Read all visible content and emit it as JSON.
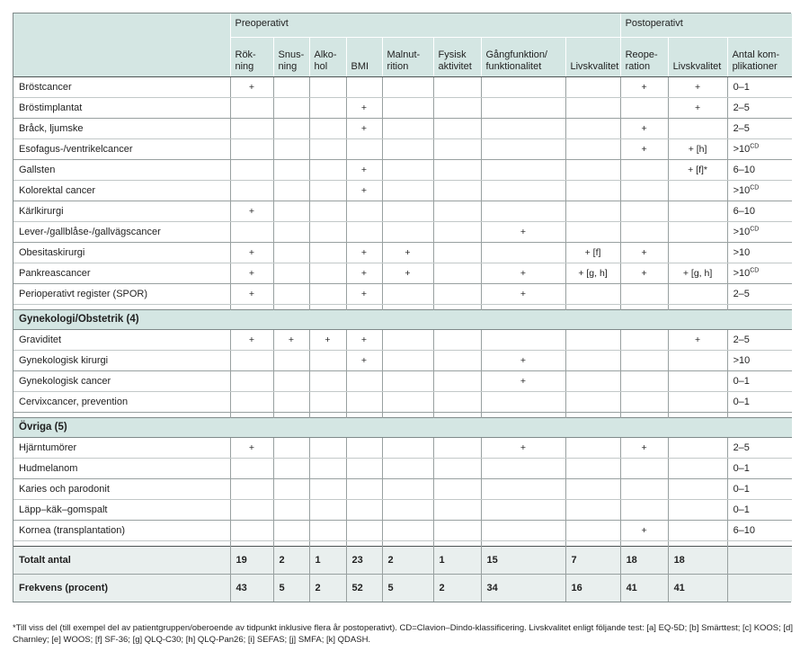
{
  "colors": {
    "header_bg": "#d4e6e3",
    "totals_bg": "#e9efee"
  },
  "table": {
    "header": {
      "preoperative_group": "Preoperativt",
      "postoperative_group": "Postoperativt",
      "columns": [
        "Rök-\nning",
        "Snus-\nning",
        "Alko-\nhol",
        "BMI",
        "Malnut-\nrition",
        "Fysisk\naktivitet",
        "Gångfunktion/\nfunktionalitet",
        "Livskvalitet",
        "Reope-\nration",
        "Livskvalitet",
        "Antal kom-\nplikationer"
      ]
    },
    "sections": [
      {
        "title": "",
        "rows": [
          {
            "label": "Bröstcancer",
            "cells": [
              "+",
              "",
              "",
              "",
              "",
              "",
              "",
              "",
              "+",
              "+",
              "0–1"
            ]
          },
          {
            "label": "Bröstimplantat",
            "cells": [
              "",
              "",
              "",
              "+",
              "",
              "",
              "",
              "",
              "",
              "+",
              "2–5"
            ]
          },
          {
            "label": "Bråck, ljumske",
            "cells": [
              "",
              "",
              "",
              "+",
              "",
              "",
              "",
              "",
              "+",
              "",
              "2–5"
            ]
          },
          {
            "label": "Esofagus-/ventrikelcancer",
            "cells": [
              "",
              "",
              "",
              "",
              "",
              "",
              "",
              "",
              "+",
              "+ [h]",
              ">10^CD"
            ]
          },
          {
            "label": "Gallsten",
            "cells": [
              "",
              "",
              "",
              "+",
              "",
              "",
              "",
              "",
              "",
              "+ [f]*",
              "6–10"
            ]
          },
          {
            "label": "Kolorektal cancer",
            "cells": [
              "",
              "",
              "",
              "+",
              "",
              "",
              "",
              "",
              "",
              "",
              ">10^CD"
            ]
          },
          {
            "label": "Kärlkirurgi",
            "cells": [
              "+",
              "",
              "",
              "",
              "",
              "",
              "",
              "",
              "",
              "",
              "6–10"
            ]
          },
          {
            "label": "Lever-/gallblåse-/gallvägscancer",
            "cells": [
              "",
              "",
              "",
              "",
              "",
              "",
              "+",
              "",
              "",
              "",
              ">10^CD"
            ]
          },
          {
            "label": "Obesitaskirurgi",
            "cells": [
              "+",
              "",
              "",
              "+",
              "+",
              "",
              "",
              "+ [f]",
              "+",
              "",
              ">10"
            ]
          },
          {
            "label": "Pankreascancer",
            "cells": [
              "+",
              "",
              "",
              "+",
              "+",
              "",
              "+",
              "+ [g, h]",
              "+",
              "+ [g, h]",
              ">10^CD"
            ]
          },
          {
            "label": "Perioperativt register (SPOR)",
            "cells": [
              "+",
              "",
              "",
              "+",
              "",
              "",
              "+",
              "",
              "",
              "",
              "2–5"
            ]
          }
        ]
      },
      {
        "title": "Gynekologi/Obstetrik (4)",
        "rows": [
          {
            "label": "Graviditet",
            "cells": [
              "+",
              "+",
              "+",
              "+",
              "",
              "",
              "",
              "",
              "",
              "+",
              "2–5"
            ]
          },
          {
            "label": "Gynekologisk kirurgi",
            "cells": [
              "",
              "",
              "",
              "+",
              "",
              "",
              "+",
              "",
              "",
              "",
              ">10"
            ]
          },
          {
            "label": "Gynekologisk cancer",
            "cells": [
              "",
              "",
              "",
              "",
              "",
              "",
              "+",
              "",
              "",
              "",
              "0–1"
            ]
          },
          {
            "label": "Cervixcancer, prevention",
            "cells": [
              "",
              "",
              "",
              "",
              "",
              "",
              "",
              "",
              "",
              "",
              "0–1"
            ]
          }
        ]
      },
      {
        "title": "Övriga (5)",
        "rows": [
          {
            "label": "Hjärntumörer",
            "cells": [
              "+",
              "",
              "",
              "",
              "",
              "",
              "+",
              "",
              "+",
              "",
              "2–5"
            ]
          },
          {
            "label": "Hudmelanom",
            "cells": [
              "",
              "",
              "",
              "",
              "",
              "",
              "",
              "",
              "",
              "",
              "0–1"
            ]
          },
          {
            "label": "Karies och parodonit",
            "cells": [
              "",
              "",
              "",
              "",
              "",
              "",
              "",
              "",
              "",
              "",
              "0–1"
            ]
          },
          {
            "label": "Läpp–käk–gomspalt",
            "cells": [
              "",
              "",
              "",
              "",
              "",
              "",
              "",
              "",
              "",
              "",
              "0–1"
            ]
          },
          {
            "label": "Kornea (transplantation)",
            "cells": [
              "",
              "",
              "",
              "",
              "",
              "",
              "",
              "",
              "+",
              "",
              "6–10"
            ]
          }
        ]
      }
    ],
    "totals": [
      {
        "label": "Totalt antal",
        "values": [
          "19",
          "2",
          "1",
          "23",
          "2",
          "1",
          "15",
          "7",
          "18",
          "18",
          ""
        ]
      },
      {
        "label": "Frekvens (procent)",
        "values": [
          "43",
          "5",
          "2",
          "52",
          "5",
          "2",
          "34",
          "16",
          "41",
          "41",
          ""
        ]
      }
    ]
  },
  "footnote": "*Till viss del (till exempel del av patientgruppen/oberoende av tidpunkt inklusive flera år postoperativt).  CD=Clavion–Dindo-klassificering. Livskvalitet enligt följande test: [a] EQ-5D; [b] Smärttest; [c] KOOS; [d] Charnley; [e] WOOS; [f] SF-36; [g] QLQ-C30; [h] QLQ-Pan26; [i] SEFAS; [j] SMFA; [k] QDASH."
}
